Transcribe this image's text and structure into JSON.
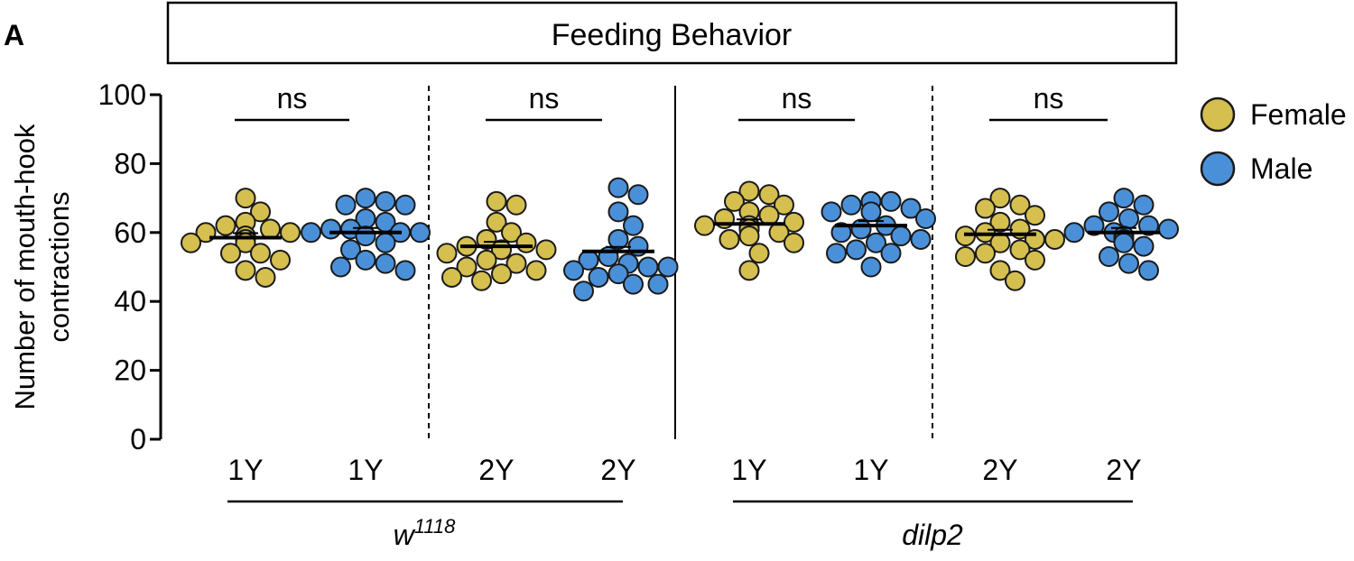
{
  "panel_label": "A",
  "colors": {
    "female": "#D4BF4F",
    "male": "#4A90D9",
    "stroke": "#1a1a1a"
  },
  "chart_data": {
    "type": "scatter",
    "title": "Feeding Behavior",
    "ylabel_line1": "Number of mouth-hook",
    "ylabel_line2": "contractions",
    "ylim": [
      0,
      100
    ],
    "yticks": [
      0,
      20,
      40,
      60,
      80,
      100
    ],
    "legend": [
      {
        "label": "Female",
        "color": "#D4BF4F"
      },
      {
        "label": "Male",
        "color": "#4A90D9"
      }
    ],
    "legend_position": "top-right",
    "genotypes": [
      {
        "label_base": "w",
        "label_sup": "1118",
        "italic": true
      },
      {
        "label_base": "dilp2",
        "label_sup": "",
        "italic": true
      }
    ],
    "comparisons": [
      {
        "label": "ns",
        "between": [
          0,
          1
        ]
      },
      {
        "label": "ns",
        "between": [
          2,
          3
        ]
      },
      {
        "label": "ns",
        "between": [
          4,
          5
        ]
      },
      {
        "label": "ns",
        "between": [
          6,
          7
        ]
      }
    ],
    "groups": [
      {
        "age": "1Y",
        "sex": "female",
        "genotype": 0,
        "mean": 58.5,
        "values": [
          70,
          66,
          63,
          62,
          61,
          60,
          60,
          59,
          59,
          58,
          57,
          57,
          54,
          54,
          52,
          49,
          47
        ]
      },
      {
        "age": "1Y",
        "sex": "male",
        "genotype": 0,
        "mean": 60,
        "values": [
          70,
          69,
          68,
          68,
          64,
          63,
          61,
          61,
          60,
          60,
          60,
          59,
          57,
          55,
          52,
          51,
          50,
          49
        ]
      },
      {
        "age": "2Y",
        "sex": "female",
        "genotype": 0,
        "mean": 56,
        "values": [
          69,
          68,
          63,
          60,
          58,
          57,
          56,
          55,
          55,
          54,
          52,
          51,
          50,
          49,
          48,
          47,
          46
        ]
      },
      {
        "age": "2Y",
        "sex": "male",
        "genotype": 0,
        "mean": 54.5,
        "values": [
          73,
          71,
          66,
          62,
          58,
          56,
          53,
          52,
          51,
          50,
          50,
          49,
          48,
          47,
          45,
          45,
          43
        ]
      },
      {
        "age": "1Y",
        "sex": "female",
        "genotype": 1,
        "mean": 62.5,
        "values": [
          72,
          71,
          69,
          68,
          66,
          65,
          64,
          63,
          62,
          62,
          61,
          61,
          60,
          59,
          58,
          57,
          54,
          49
        ]
      },
      {
        "age": "1Y",
        "sex": "male",
        "genotype": 1,
        "mean": 62,
        "values": [
          69,
          69,
          68,
          67,
          66,
          66,
          64,
          62,
          61,
          60,
          59,
          58,
          57,
          55,
          54,
          54,
          50
        ]
      },
      {
        "age": "2Y",
        "sex": "female",
        "genotype": 1,
        "mean": 59.5,
        "values": [
          70,
          68,
          67,
          65,
          63,
          61,
          60,
          59,
          58,
          58,
          57,
          55,
          54,
          53,
          52,
          49,
          46
        ]
      },
      {
        "age": "2Y",
        "sex": "male",
        "genotype": 1,
        "mean": 60,
        "values": [
          70,
          68,
          66,
          64,
          62,
          62,
          61,
          60,
          60,
          59,
          58,
          57,
          56,
          53,
          51,
          49
        ]
      }
    ]
  }
}
